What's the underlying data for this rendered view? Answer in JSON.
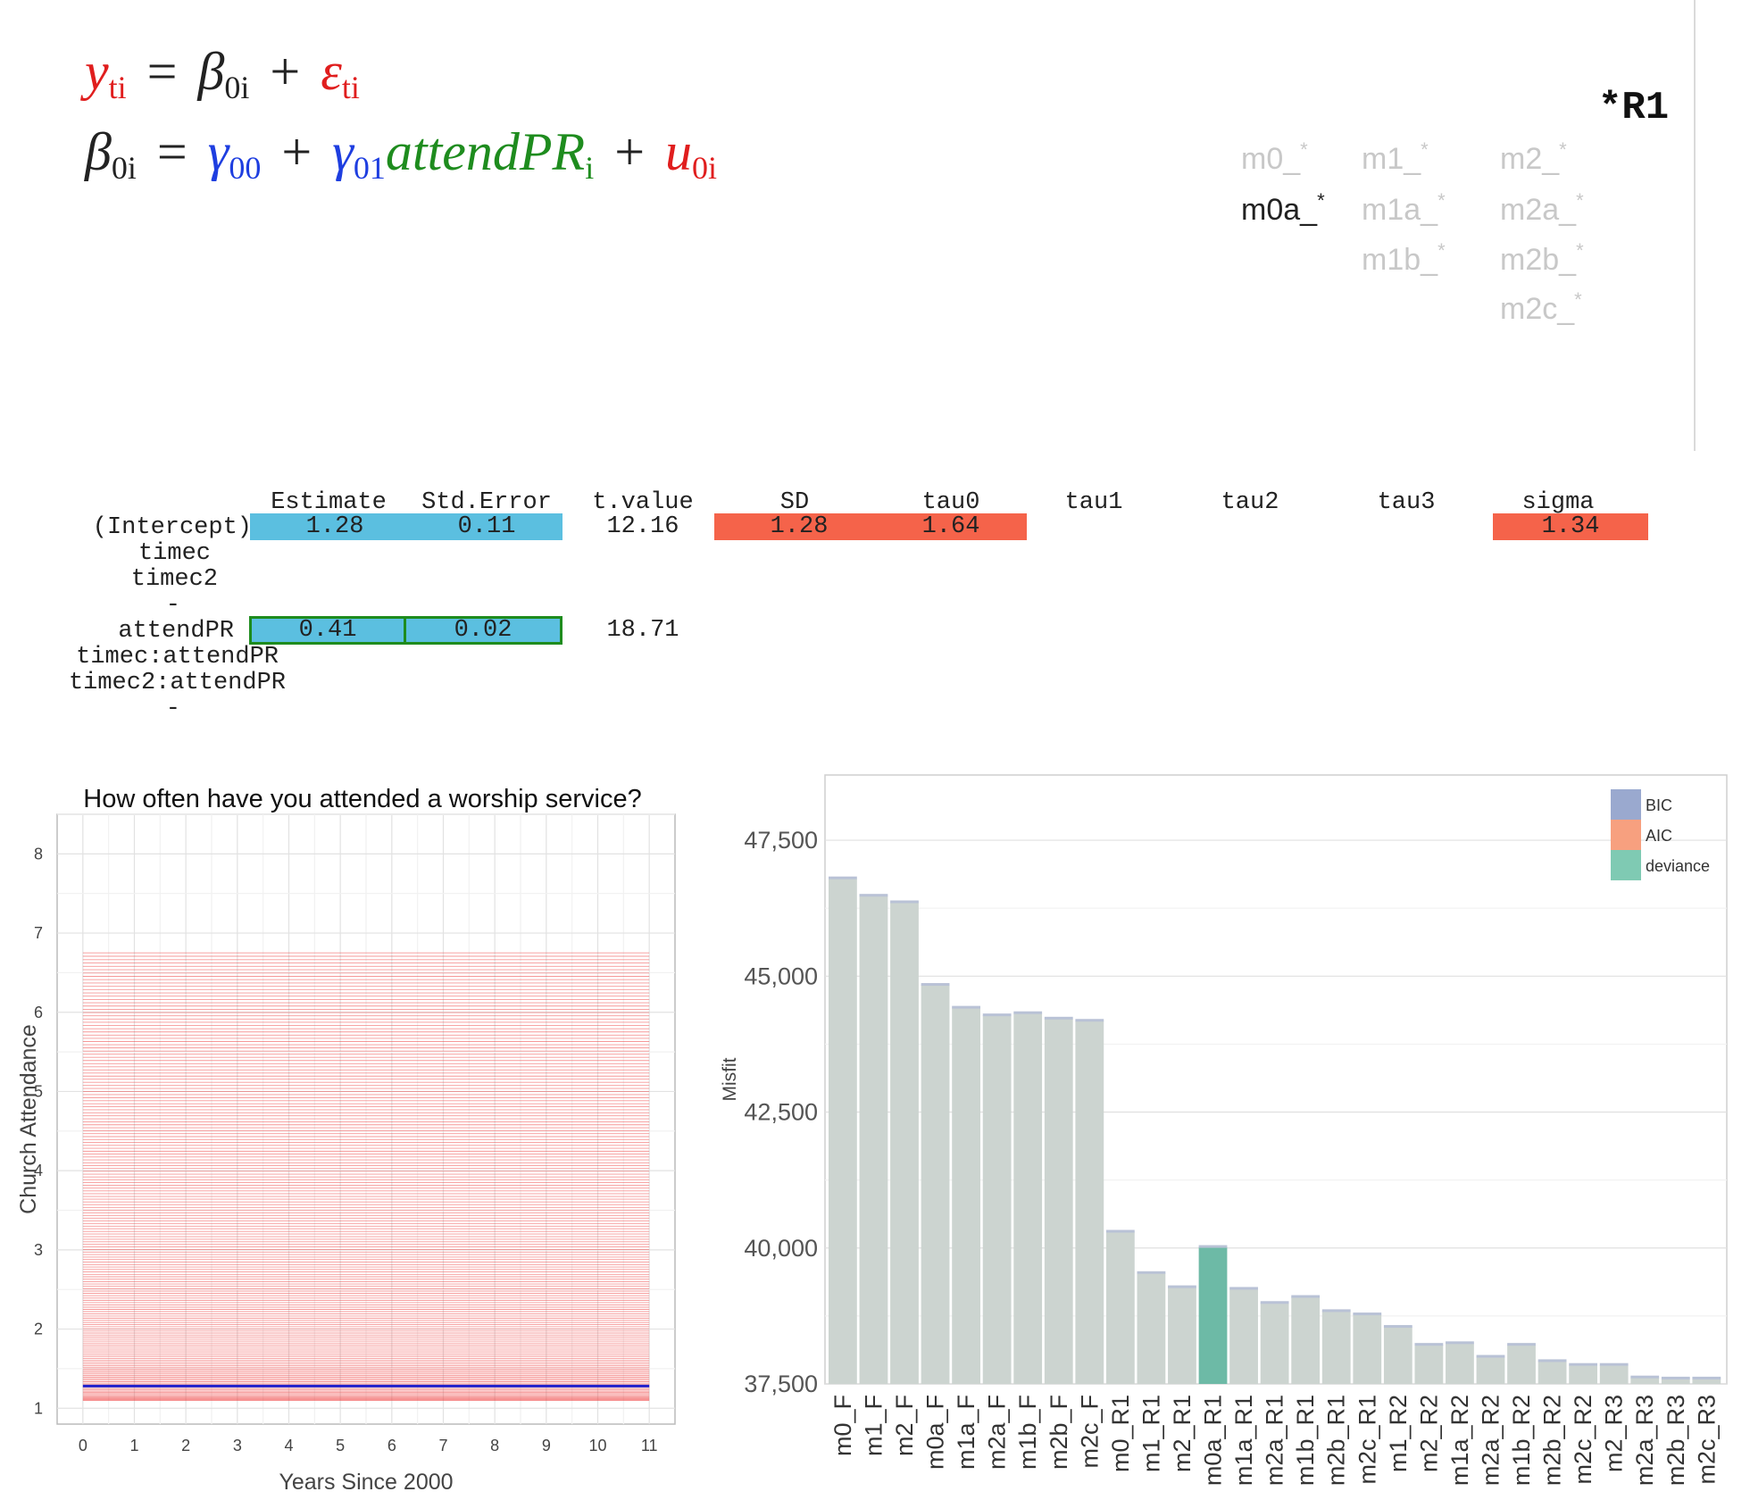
{
  "equations": {
    "eq1": {
      "y": "y",
      "y_sub": "ti",
      "beta": "β",
      "beta_sub": "0i",
      "eps": "ε",
      "eps_sub": "ti"
    },
    "eq2": {
      "beta": "β",
      "beta_sub": "0i",
      "gamma00": "γ",
      "gamma00_sub": "00",
      "gamma01": "γ",
      "gamma01_sub": "01",
      "attend": "attendPR",
      "attend_sub": "i",
      "u": "u",
      "u_sub": "0i"
    }
  },
  "model_selector": {
    "label": "*R1",
    "items": [
      {
        "label": "m0_",
        "active": false
      },
      {
        "label": "m1_",
        "active": false
      },
      {
        "label": "m2_",
        "active": false
      },
      {
        "label": "m0a_",
        "active": true
      },
      {
        "label": "m1a_",
        "active": false
      },
      {
        "label": "m2a_",
        "active": false
      },
      {
        "label": "m1b_",
        "active": false
      },
      {
        "label": "m2b_",
        "active": false
      },
      {
        "label": "m2c_",
        "active": false
      }
    ],
    "star": "*"
  },
  "coef_table": {
    "headers": [
      "Estimate",
      "Std.Error",
      "t.value",
      "SD",
      "tau0",
      "tau1",
      "tau2",
      "tau3",
      "sigma"
    ],
    "rows": [
      "(Intercept)",
      "timec",
      "timec2",
      "-",
      "attendPR",
      "timec:attendPR",
      "timec2:attendPR",
      "-"
    ],
    "intercept": {
      "estimate": "1.28",
      "se": "0.11",
      "t": "12.16",
      "sd": "1.28",
      "tau0": "1.64",
      "sigma": "1.34"
    },
    "attendPR": {
      "estimate": "0.41",
      "se": "0.02",
      "t": "18.71"
    }
  },
  "colors": {
    "blue": "#5bbfe0",
    "red": "#f5634a",
    "green": "#1e8c1e",
    "bar": "#ccd4d0",
    "highlight": "#6dbaa6"
  },
  "chart_data": [
    {
      "type": "line",
      "title": "How often have you attended a worship service?",
      "xlabel": "Years Since 2000",
      "ylabel": "Church Attendance",
      "x_ticks": [
        "0",
        "1",
        "2",
        "3",
        "4",
        "5",
        "6",
        "7",
        "8",
        "9",
        "10",
        "11"
      ],
      "y_ticks": [
        "1",
        "2",
        "3",
        "4",
        "5",
        "6",
        "7",
        "8"
      ],
      "xlim": [
        -0.5,
        11.5
      ],
      "ylim": [
        0.8,
        8.5
      ],
      "individual_lines": {
        "color": "#ee4444",
        "x_range": [
          0,
          11
        ],
        "y_min": 1.1,
        "y_max": 6.75
      },
      "mean_line": {
        "color": "#2222cc",
        "y": 1.28
      },
      "grid": true
    },
    {
      "type": "bar",
      "xlabel": "",
      "ylabel": "Misfit",
      "y_ticks": [
        "37,500",
        "40,000",
        "42,500",
        "45,000",
        "47,500"
      ],
      "ylim": [
        37500,
        48700
      ],
      "legend": {
        "position": "top-right",
        "entries": [
          {
            "name": "BIC",
            "color": "#9aa9cf"
          },
          {
            "name": "AIC",
            "color": "#f7a07f"
          },
          {
            "name": "deviance",
            "color": "#7fcab3"
          }
        ]
      },
      "categories": [
        "m0_F",
        "m1_F",
        "m2_F",
        "m0a_F",
        "m1a_F",
        "m2a_F",
        "m1b_F",
        "m2b_F",
        "m2c_F",
        "m0_R1",
        "m1_R1",
        "m2_R1",
        "m0a_R1",
        "m1a_R1",
        "m2a_R1",
        "m1b_R1",
        "m2b_R1",
        "m2c_R1",
        "m1_R2",
        "m2_R2",
        "m1a_R2",
        "m2a_R2",
        "m1b_R2",
        "m2b_R2",
        "m2c_R2",
        "m2_R3",
        "m2a_R3",
        "m2b_R3",
        "m2c_R3"
      ],
      "values": [
        46800,
        46480,
        46360,
        44840,
        44420,
        44280,
        44320,
        44220,
        44180,
        40300,
        39540,
        39280,
        40020,
        39250,
        38990,
        39100,
        38840,
        38780,
        38550,
        38220,
        38250,
        38000,
        38220,
        37920,
        37850,
        37850,
        37620,
        37600,
        37600
      ],
      "highlight": "m0a_R1"
    }
  ]
}
